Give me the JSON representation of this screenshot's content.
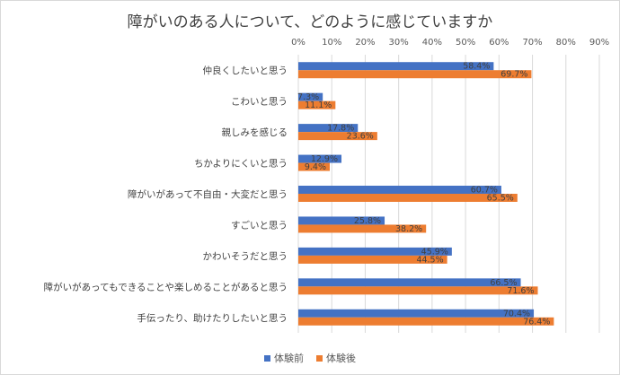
{
  "chart_data": {
    "type": "bar",
    "orientation": "horizontal",
    "title": "障がいのある人について、どのように感じていますか",
    "categories": [
      "仲良くしたいと思う",
      "こわいと思う",
      "親しみを感じる",
      "ちかよりにくいと思う",
      "障がいがあって不自由・大変だと思う",
      "すごいと思う",
      "かわいそうだと思う",
      "障がいがあってもできることや楽しめることがあると思う",
      "手伝ったり、助けたりしたいと思う"
    ],
    "series": [
      {
        "name": "体験前",
        "color": "#4472c4",
        "values": [
          58.4,
          7.3,
          17.8,
          12.9,
          60.7,
          25.8,
          45.9,
          66.5,
          70.4
        ],
        "labels": [
          "58.4%",
          "7.3%",
          "17.8%",
          "12.9%",
          "60.7%",
          "25.8%",
          "45.9%",
          "66.5%",
          "70.4%"
        ]
      },
      {
        "name": "体験後",
        "color": "#ed7d31",
        "values": [
          69.7,
          11.1,
          23.6,
          9.4,
          65.5,
          38.2,
          44.5,
          71.6,
          76.4
        ],
        "labels": [
          "69.7%",
          "11.1%",
          "23.6%",
          "9.4%",
          "65.5%",
          "38.2%",
          "44.5%",
          "71.6%",
          "76.4%"
        ]
      }
    ],
    "xlim": [
      0,
      90
    ],
    "xticks": [
      "0%",
      "10%",
      "20%",
      "30%",
      "40%",
      "50%",
      "60%",
      "70%",
      "80%",
      "90%"
    ],
    "xaxis_position": "top",
    "grid": true,
    "legend_position": "bottom"
  }
}
